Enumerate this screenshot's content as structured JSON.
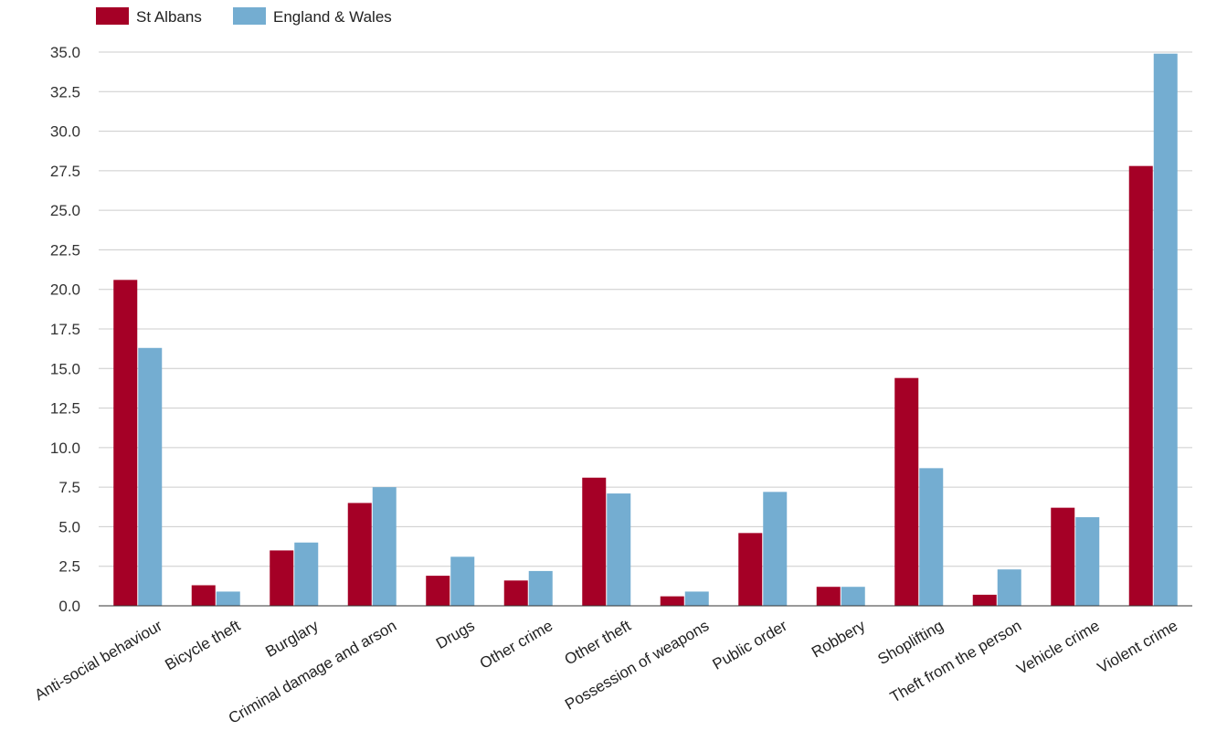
{
  "chart_data": {
    "type": "bar",
    "categories": [
      "Anti-social behaviour",
      "Bicycle theft",
      "Burglary",
      "Criminal damage and arson",
      "Drugs",
      "Other crime",
      "Other theft",
      "Possession of weapons",
      "Public order",
      "Robbery",
      "Shoplifting",
      "Theft from the person",
      "Vehicle crime",
      "Violent crime"
    ],
    "series": [
      {
        "name": "St Albans",
        "color": "#a50026",
        "values": [
          20.6,
          1.3,
          3.5,
          6.5,
          1.9,
          1.6,
          8.1,
          0.6,
          4.6,
          1.2,
          14.4,
          0.7,
          6.2,
          27.8
        ]
      },
      {
        "name": "England & Wales",
        "color": "#74add1",
        "values": [
          16.3,
          0.9,
          4.0,
          7.5,
          3.1,
          2.2,
          7.1,
          0.9,
          7.2,
          1.2,
          8.7,
          2.3,
          5.6,
          34.9
        ]
      }
    ],
    "y_ticks": [
      "0.0",
      "2.5",
      "5.0",
      "7.5",
      "10.0",
      "12.5",
      "15.0",
      "17.5",
      "20.0",
      "22.5",
      "25.0",
      "27.5",
      "30.0",
      "32.5",
      "35.0"
    ],
    "ylim": [
      0,
      35
    ],
    "grid": true,
    "legend_position": "top-left",
    "title": "",
    "xlabel": "",
    "ylabel": ""
  }
}
